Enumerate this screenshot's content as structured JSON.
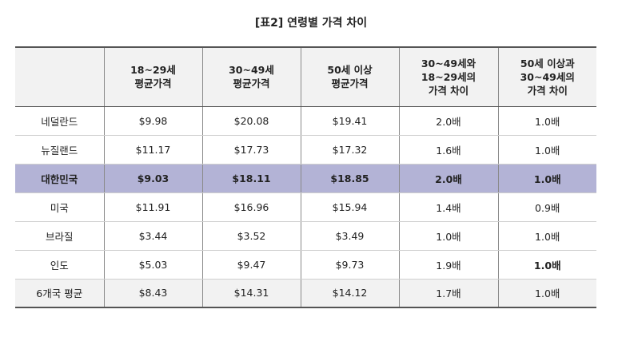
{
  "title": "[표2] 연령별 가격 차이",
  "headers": [
    "",
    "18~29세\n평균가격",
    "30~49세\n평균가격",
    "50세 이상\n평균가격",
    "30~49세와\n18~29세의\n가격 차이",
    "50세 이상과\n30~49세의\n가격 차이"
  ],
  "rows": [
    [
      "네덜란드",
      "$9.98",
      "$20.08",
      "$19.41",
      "2.0배",
      "1.0배"
    ],
    [
      "뉴질랜드",
      "$11.17",
      "$17.73",
      "$17.32",
      "1.6배",
      "1.0배"
    ],
    [
      "대한민국",
      "$9.03",
      "$18.11",
      "$18.85",
      "2.0배",
      "1.0배"
    ],
    [
      "미국",
      "$11.91",
      "$16.96",
      "$15.94",
      "1.4배",
      "0.9배"
    ],
    [
      "브라질",
      "$3.44",
      "$3.52",
      "$3.49",
      "1.0배",
      "1.0배"
    ],
    [
      "인도",
      "$5.03",
      "$9.47",
      "$9.73",
      "1.9배",
      "1.0배"
    ],
    [
      "6개국 평균",
      "$8.43",
      "$14.31",
      "$14.12",
      "1.7배",
      "1.0배"
    ]
  ]
}
